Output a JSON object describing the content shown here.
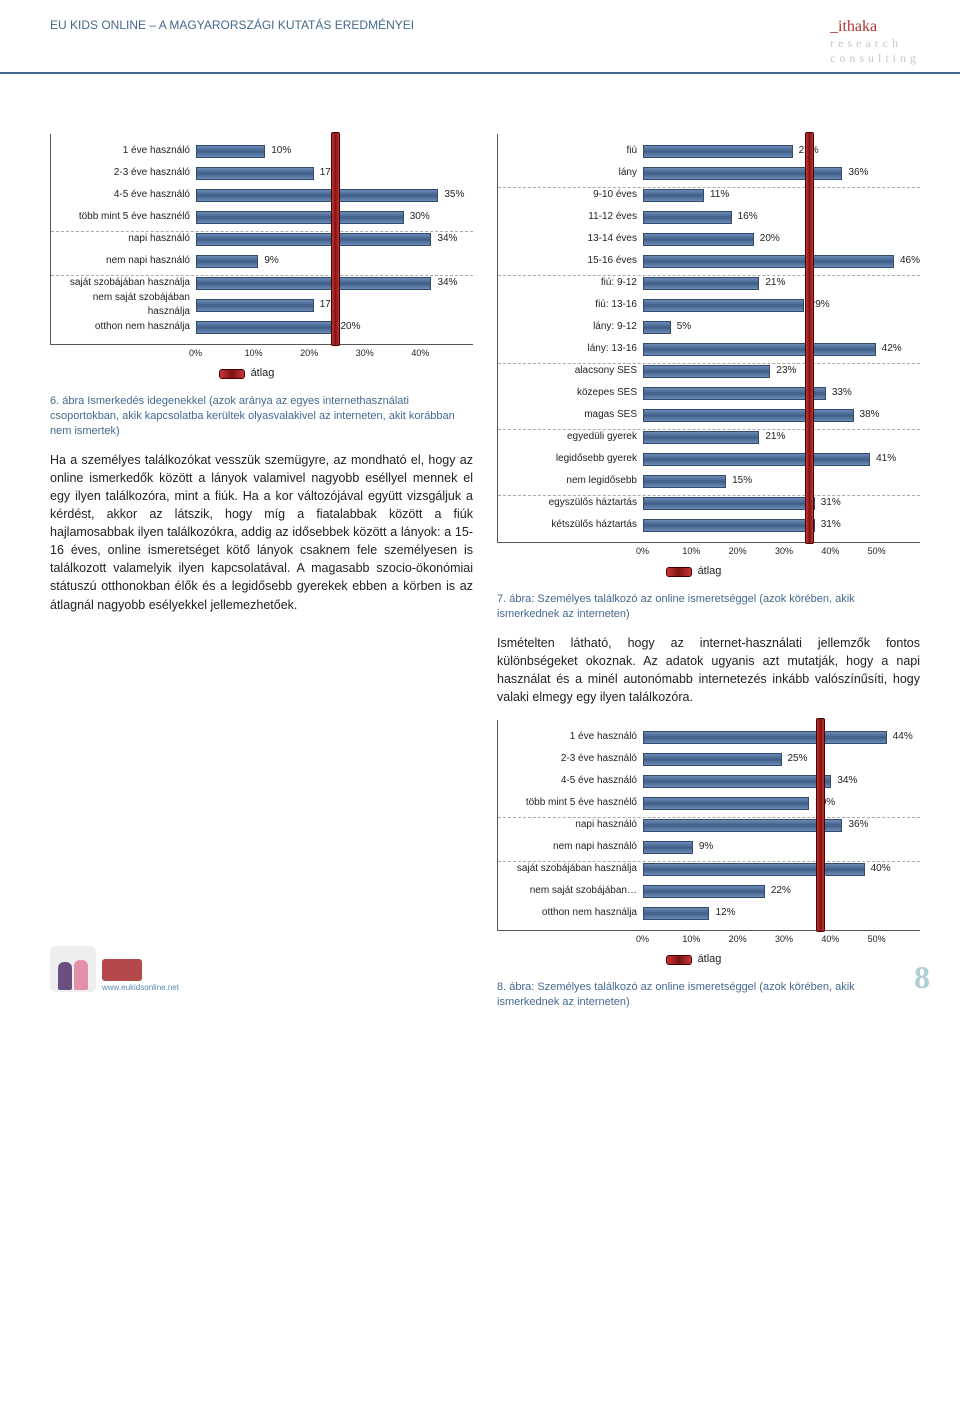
{
  "header": {
    "title": "EU KIDS ONLINE – A MAGYARORSZÁGI KUTATÁS EREDMÉNYEI",
    "logo_main": "ithaka",
    "logo_sub1": "research",
    "logo_sub2": "consulting"
  },
  "chart6": {
    "type": "bar",
    "x_max": 40,
    "avg_percent": 20,
    "bar_color_top": "#6b8bb8",
    "bar_color_mid": "#3f5d86",
    "avg_color": "#b22222",
    "items": [
      {
        "label": "1 éve használó",
        "value": 10,
        "show": "10%",
        "dash": false
      },
      {
        "label": "2-3 éve használó",
        "value": 17,
        "show": "17%",
        "dash": false
      },
      {
        "label": "4-5 éve használó",
        "value": 35,
        "show": "35%",
        "dash": false
      },
      {
        "label": "több mint 5 éve hasznélő",
        "value": 30,
        "show": "30%",
        "dash": true
      },
      {
        "label": "napi használó",
        "value": 34,
        "show": "34%",
        "dash": false
      },
      {
        "label": "nem napi használó",
        "value": 9,
        "show": "9%",
        "dash": true
      },
      {
        "label": "saját szobájában használja",
        "value": 34,
        "show": "34%",
        "dash": false
      },
      {
        "label": "nem saját szobájában használja",
        "value": 17,
        "show": "17%",
        "dash": false
      },
      {
        "label": "otthon nem használja",
        "value": 20,
        "show": "20%",
        "dash": false
      }
    ],
    "x_ticks": [
      "0%",
      "10%",
      "20%",
      "30%",
      "40%"
    ],
    "legend": "átlag",
    "caption": "6. ábra Ismerkedés idegenekkel (azok aránya az egyes internethasználati csoportokban, akik kapcsolatba kerültek olyasvalakivel az interneten, akit korábban nem ismertek)"
  },
  "left_body": "Ha a személyes találkozókat vesszük szemügyre, az mondható el, hogy az online ismerkedők között a lányok valamivel nagyobb eséllyel mennek el egy ilyen találkozóra, mint a fiúk. Ha a kor változójával együtt vizsgáljuk a kérdést, akkor az látszik, hogy míg a fiatalabbak között a fiúk hajlamosabbak ilyen találkozókra, addig az idősebbek között a lányok: a 15-16 éves, online ismeretséget kötő lányok csaknem fele személyesen is találkozott valamelyik ilyen kapcsolatával. A magasabb szocio-ökonómiai státuszú otthonokban élők és a legidősebb gyerekek ebben a körben is az átlagnál nagyobb esélyekkel jellemezhetőek.",
  "chart7": {
    "type": "bar",
    "x_max": 50,
    "avg_percent": 30,
    "items": [
      {
        "label": "fiú",
        "value": 27,
        "show": "27%",
        "dash": false
      },
      {
        "label": "lány",
        "value": 36,
        "show": "36%",
        "dash": true
      },
      {
        "label": "9-10 éves",
        "value": 11,
        "show": "11%",
        "dash": false
      },
      {
        "label": "11-12 éves",
        "value": 16,
        "show": "16%",
        "dash": false
      },
      {
        "label": "13-14 éves",
        "value": 20,
        "show": "20%",
        "dash": false
      },
      {
        "label": "15-16 éves",
        "value": 46,
        "show": "46%",
        "dash": true
      },
      {
        "label": "fiú: 9-12",
        "value": 21,
        "show": "21%",
        "dash": false
      },
      {
        "label": "fiú: 13-16",
        "value": 29,
        "show": "29%",
        "dash": false
      },
      {
        "label": "lány: 9-12",
        "value": 5,
        "show": "5%",
        "dash": false
      },
      {
        "label": "lány: 13-16",
        "value": 42,
        "show": "42%",
        "dash": true
      },
      {
        "label": "alacsony SES",
        "value": 23,
        "show": "23%",
        "dash": false
      },
      {
        "label": "közepes SES",
        "value": 33,
        "show": "33%",
        "dash": false
      },
      {
        "label": "magas SES",
        "value": 38,
        "show": "38%",
        "dash": true
      },
      {
        "label": "egyedüli gyerek",
        "value": 21,
        "show": "21%",
        "dash": false
      },
      {
        "label": "legidősebb gyerek",
        "value": 41,
        "show": "41%",
        "dash": false
      },
      {
        "label": "nem legidősebb",
        "value": 15,
        "show": "15%",
        "dash": true
      },
      {
        "label": "egyszülős háztartás",
        "value": 31,
        "show": "31%",
        "dash": false
      },
      {
        "label": "kétszülős háztartás",
        "value": 31,
        "show": "31%",
        "dash": false
      }
    ],
    "x_ticks": [
      "0%",
      "10%",
      "20%",
      "30%",
      "40%",
      "50%"
    ],
    "legend": "átlag",
    "caption": "7. ábra: Személyes találkozó az online ismeretséggel (azok körében, akik ismerkednek az interneten)"
  },
  "right_body": "Ismételten látható, hogy az internet-használati jellemzők fontos különbségeket okoznak. Az adatok ugyanis azt mutatják, hogy a napi használat és a minél autonómabb internetezés inkább valószínűsíti, hogy valaki elmegy egy ilyen találkozóra.",
  "chart8": {
    "type": "bar",
    "x_max": 50,
    "avg_percent": 32,
    "items": [
      {
        "label": "1 éve használó",
        "value": 44,
        "show": "44%",
        "dash": false
      },
      {
        "label": "2-3 éve használó",
        "value": 25,
        "show": "25%",
        "dash": false
      },
      {
        "label": "4-5 éve használó",
        "value": 34,
        "show": "34%",
        "dash": false
      },
      {
        "label": "több mint 5 éve hasznélő",
        "value": 30,
        "show": "30%",
        "dash": true
      },
      {
        "label": "napi használó",
        "value": 36,
        "show": "36%",
        "dash": false
      },
      {
        "label": "nem napi használó",
        "value": 9,
        "show": "9%",
        "dash": true
      },
      {
        "label": "saját szobájában használja",
        "value": 40,
        "show": "40%",
        "dash": false
      },
      {
        "label": "nem saját szobájában…",
        "value": 22,
        "show": "22%",
        "dash": false
      },
      {
        "label": "otthon nem használja",
        "value": 12,
        "show": "12%",
        "dash": false
      }
    ],
    "x_ticks": [
      "0%",
      "10%",
      "20%",
      "30%",
      "40%",
      "50%"
    ],
    "legend": "átlag",
    "caption": "8. ábra: Személyes találkozó az online ismeretséggel (azok körében, akik ismerkednek az interneten)"
  },
  "footer": {
    "site": "www.eukidsonline.net",
    "page_number": "8"
  }
}
